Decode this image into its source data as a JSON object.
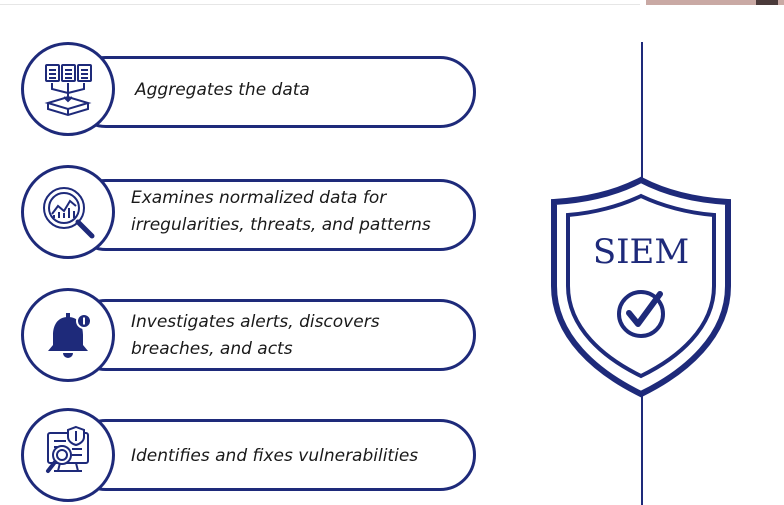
{
  "steps": [
    {
      "text": "Aggregates the data",
      "icon": "document-aggregation-icon"
    },
    {
      "text_line1": "Examines normalized data for",
      "text_line2": "irregularities, threats, and patterns",
      "icon": "magnifier-analytics-icon"
    },
    {
      "text_line1": "Investigates alerts, discovers",
      "text_line2": "breaches, and acts",
      "icon": "alert-bell-icon"
    },
    {
      "text": "Identifies and fixes vulnerabilities",
      "icon": "vulnerability-scan-icon"
    }
  ],
  "badge": {
    "label": "SIEM",
    "icon": "shield-check-icon"
  },
  "colors": {
    "primary": "#1e2a7a",
    "text": "#1a1a1a",
    "background": "#ffffff"
  }
}
